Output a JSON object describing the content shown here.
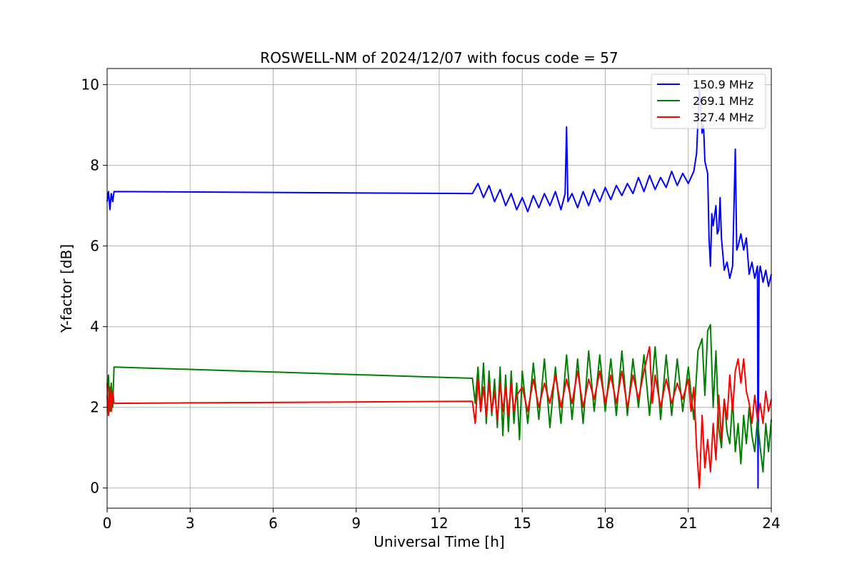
{
  "chart_data": {
    "type": "line",
    "title": "ROSWELL-NM of 2024/12/07 with focus code = 57",
    "xlabel": "Universal Time [h]",
    "ylabel": "Y-factor [dB]",
    "xlim": [
      0,
      24
    ],
    "ylim": [
      -0.5,
      10.4
    ],
    "xticks": [
      0,
      3,
      6,
      9,
      12,
      15,
      18,
      21,
      24
    ],
    "yticks": [
      0,
      2,
      4,
      6,
      8,
      10
    ],
    "grid": true,
    "legend_position": "top-right",
    "series": [
      {
        "name": "150.9 MHz",
        "color": "#0000ff",
        "points": [
          [
            0.0,
            7.1
          ],
          [
            0.05,
            7.35
          ],
          [
            0.1,
            6.9
          ],
          [
            0.15,
            7.3
          ],
          [
            0.2,
            7.1
          ],
          [
            0.25,
            7.35
          ],
          [
            13.2,
            7.3
          ],
          [
            13.4,
            7.55
          ],
          [
            13.6,
            7.2
          ],
          [
            13.8,
            7.5
          ],
          [
            14.0,
            7.1
          ],
          [
            14.2,
            7.4
          ],
          [
            14.4,
            7.0
          ],
          [
            14.6,
            7.3
          ],
          [
            14.8,
            6.9
          ],
          [
            15.0,
            7.2
          ],
          [
            15.2,
            6.85
          ],
          [
            15.4,
            7.25
          ],
          [
            15.6,
            6.95
          ],
          [
            15.8,
            7.3
          ],
          [
            16.0,
            7.0
          ],
          [
            16.2,
            7.35
          ],
          [
            16.4,
            6.9
          ],
          [
            16.55,
            7.3
          ],
          [
            16.6,
            8.95
          ],
          [
            16.65,
            7.1
          ],
          [
            16.8,
            7.3
          ],
          [
            17.0,
            6.95
          ],
          [
            17.2,
            7.35
          ],
          [
            17.4,
            7.0
          ],
          [
            17.6,
            7.4
          ],
          [
            17.8,
            7.1
          ],
          [
            18.0,
            7.45
          ],
          [
            18.2,
            7.15
          ],
          [
            18.4,
            7.5
          ],
          [
            18.6,
            7.25
          ],
          [
            18.8,
            7.55
          ],
          [
            19.0,
            7.3
          ],
          [
            19.2,
            7.7
          ],
          [
            19.4,
            7.35
          ],
          [
            19.6,
            7.75
          ],
          [
            19.8,
            7.4
          ],
          [
            20.0,
            7.7
          ],
          [
            20.2,
            7.45
          ],
          [
            20.4,
            7.85
          ],
          [
            20.6,
            7.5
          ],
          [
            20.8,
            7.8
          ],
          [
            21.0,
            7.55
          ],
          [
            21.2,
            7.85
          ],
          [
            21.3,
            8.3
          ],
          [
            21.4,
            9.95
          ],
          [
            21.5,
            8.8
          ],
          [
            21.55,
            9.0
          ],
          [
            21.6,
            8.1
          ],
          [
            21.7,
            7.8
          ],
          [
            21.75,
            6.2
          ],
          [
            21.8,
            5.5
          ],
          [
            21.85,
            6.8
          ],
          [
            21.9,
            6.5
          ],
          [
            22.0,
            7.0
          ],
          [
            22.05,
            6.3
          ],
          [
            22.1,
            6.4
          ],
          [
            22.15,
            7.2
          ],
          [
            22.2,
            6.2
          ],
          [
            22.3,
            5.4
          ],
          [
            22.4,
            5.6
          ],
          [
            22.5,
            5.2
          ],
          [
            22.6,
            5.5
          ],
          [
            22.7,
            8.4
          ],
          [
            22.75,
            5.9
          ],
          [
            22.8,
            6.0
          ],
          [
            22.9,
            6.3
          ],
          [
            23.0,
            5.9
          ],
          [
            23.1,
            6.2
          ],
          [
            23.2,
            5.3
          ],
          [
            23.3,
            5.6
          ],
          [
            23.4,
            5.2
          ],
          [
            23.5,
            5.5
          ],
          [
            23.52,
            0.0
          ],
          [
            23.56,
            5.3
          ],
          [
            23.6,
            5.5
          ],
          [
            23.7,
            5.1
          ],
          [
            23.8,
            5.4
          ],
          [
            23.9,
            5.0
          ],
          [
            24.0,
            5.3
          ]
        ]
      },
      {
        "name": "269.1 MHz",
        "color": "#008000",
        "points": [
          [
            0.0,
            2.2
          ],
          [
            0.05,
            2.8
          ],
          [
            0.1,
            1.9
          ],
          [
            0.15,
            2.6
          ],
          [
            0.2,
            2.0
          ],
          [
            0.25,
            3.0
          ],
          [
            13.2,
            2.72
          ],
          [
            13.3,
            2.1
          ],
          [
            13.4,
            3.0
          ],
          [
            13.5,
            1.9
          ],
          [
            13.6,
            3.1
          ],
          [
            13.7,
            1.6
          ],
          [
            13.8,
            2.9
          ],
          [
            13.9,
            1.8
          ],
          [
            14.0,
            2.7
          ],
          [
            14.1,
            1.5
          ],
          [
            14.2,
            3.0
          ],
          [
            14.3,
            1.3
          ],
          [
            14.4,
            2.8
          ],
          [
            14.5,
            1.4
          ],
          [
            14.6,
            2.9
          ],
          [
            14.7,
            1.6
          ],
          [
            14.8,
            2.6
          ],
          [
            14.9,
            1.2
          ],
          [
            15.0,
            2.9
          ],
          [
            15.2,
            1.6
          ],
          [
            15.4,
            3.1
          ],
          [
            15.6,
            1.7
          ],
          [
            15.8,
            3.2
          ],
          [
            16.0,
            1.5
          ],
          [
            16.2,
            3.0
          ],
          [
            16.4,
            1.6
          ],
          [
            16.6,
            3.3
          ],
          [
            16.8,
            1.7
          ],
          [
            17.0,
            3.2
          ],
          [
            17.2,
            1.6
          ],
          [
            17.4,
            3.4
          ],
          [
            17.6,
            1.9
          ],
          [
            17.8,
            3.3
          ],
          [
            18.0,
            1.9
          ],
          [
            18.2,
            3.2
          ],
          [
            18.4,
            1.8
          ],
          [
            18.6,
            3.4
          ],
          [
            18.8,
            1.8
          ],
          [
            19.0,
            3.2
          ],
          [
            19.2,
            2.0
          ],
          [
            19.4,
            3.3
          ],
          [
            19.6,
            1.8
          ],
          [
            19.8,
            3.5
          ],
          [
            20.0,
            1.7
          ],
          [
            20.2,
            3.3
          ],
          [
            20.4,
            1.8
          ],
          [
            20.6,
            3.2
          ],
          [
            20.8,
            1.9
          ],
          [
            21.0,
            3.0
          ],
          [
            21.2,
            1.7
          ],
          [
            21.35,
            3.4
          ],
          [
            21.5,
            3.7
          ],
          [
            21.6,
            2.3
          ],
          [
            21.7,
            3.9
          ],
          [
            21.8,
            4.05
          ],
          [
            21.9,
            2.0
          ],
          [
            22.0,
            3.4
          ],
          [
            22.1,
            1.5
          ],
          [
            22.2,
            1.0
          ],
          [
            22.3,
            2.2
          ],
          [
            22.4,
            1.4
          ],
          [
            22.5,
            1.1
          ],
          [
            22.6,
            2.2
          ],
          [
            22.7,
            0.9
          ],
          [
            22.8,
            1.6
          ],
          [
            22.9,
            0.6
          ],
          [
            23.0,
            1.8
          ],
          [
            23.1,
            1.1
          ],
          [
            23.2,
            2.0
          ],
          [
            23.3,
            1.3
          ],
          [
            23.4,
            0.9
          ],
          [
            23.5,
            1.7
          ],
          [
            23.6,
            1.0
          ],
          [
            23.7,
            0.4
          ],
          [
            23.8,
            1.6
          ],
          [
            23.9,
            0.9
          ],
          [
            24.0,
            1.7
          ]
        ]
      },
      {
        "name": "327.4 MHz",
        "color": "#ff0000",
        "points": [
          [
            0.0,
            2.6
          ],
          [
            0.05,
            1.8
          ],
          [
            0.1,
            2.5
          ],
          [
            0.15,
            1.9
          ],
          [
            0.2,
            2.4
          ],
          [
            0.25,
            2.1
          ],
          [
            13.2,
            2.15
          ],
          [
            13.3,
            1.6
          ],
          [
            13.4,
            2.7
          ],
          [
            13.5,
            1.9
          ],
          [
            13.6,
            2.5
          ],
          [
            13.7,
            1.8
          ],
          [
            13.8,
            2.6
          ],
          [
            13.9,
            1.9
          ],
          [
            14.0,
            2.4
          ],
          [
            14.1,
            1.7
          ],
          [
            14.2,
            2.6
          ],
          [
            14.3,
            1.9
          ],
          [
            14.4,
            2.5
          ],
          [
            14.5,
            1.8
          ],
          [
            14.6,
            2.6
          ],
          [
            14.7,
            1.9
          ],
          [
            14.8,
            2.3
          ],
          [
            15.0,
            2.5
          ],
          [
            15.2,
            1.9
          ],
          [
            15.4,
            2.7
          ],
          [
            15.6,
            2.0
          ],
          [
            15.8,
            2.6
          ],
          [
            16.0,
            2.1
          ],
          [
            16.2,
            2.8
          ],
          [
            16.4,
            2.0
          ],
          [
            16.6,
            2.7
          ],
          [
            16.8,
            2.1
          ],
          [
            17.0,
            2.9
          ],
          [
            17.2,
            2.0
          ],
          [
            17.4,
            2.7
          ],
          [
            17.6,
            2.2
          ],
          [
            17.8,
            2.9
          ],
          [
            18.0,
            2.1
          ],
          [
            18.2,
            2.8
          ],
          [
            18.4,
            2.1
          ],
          [
            18.6,
            2.9
          ],
          [
            18.8,
            2.0
          ],
          [
            19.0,
            2.8
          ],
          [
            19.2,
            2.2
          ],
          [
            19.4,
            2.9
          ],
          [
            19.6,
            3.5
          ],
          [
            19.7,
            2.1
          ],
          [
            19.8,
            2.8
          ],
          [
            20.0,
            2.0
          ],
          [
            20.2,
            2.7
          ],
          [
            20.4,
            2.1
          ],
          [
            20.6,
            2.6
          ],
          [
            20.8,
            2.2
          ],
          [
            21.0,
            2.7
          ],
          [
            21.1,
            1.9
          ],
          [
            21.2,
            2.5
          ],
          [
            21.3,
            1.0
          ],
          [
            21.4,
            0.0
          ],
          [
            21.5,
            1.8
          ],
          [
            21.6,
            0.5
          ],
          [
            21.7,
            1.2
          ],
          [
            21.8,
            0.4
          ],
          [
            21.9,
            1.6
          ],
          [
            22.0,
            0.7
          ],
          [
            22.1,
            2.3
          ],
          [
            22.2,
            1.2
          ],
          [
            22.3,
            2.2
          ],
          [
            22.4,
            1.7
          ],
          [
            22.5,
            2.8
          ],
          [
            22.6,
            1.9
          ],
          [
            22.7,
            2.9
          ],
          [
            22.8,
            3.2
          ],
          [
            22.9,
            2.6
          ],
          [
            23.0,
            3.2
          ],
          [
            23.1,
            2.4
          ],
          [
            23.2,
            2.1
          ],
          [
            23.3,
            1.6
          ],
          [
            23.4,
            2.3
          ],
          [
            23.5,
            1.7
          ],
          [
            23.6,
            2.1
          ],
          [
            23.7,
            1.6
          ],
          [
            23.8,
            2.4
          ],
          [
            23.9,
            1.9
          ],
          [
            24.0,
            2.2
          ]
        ]
      }
    ]
  }
}
